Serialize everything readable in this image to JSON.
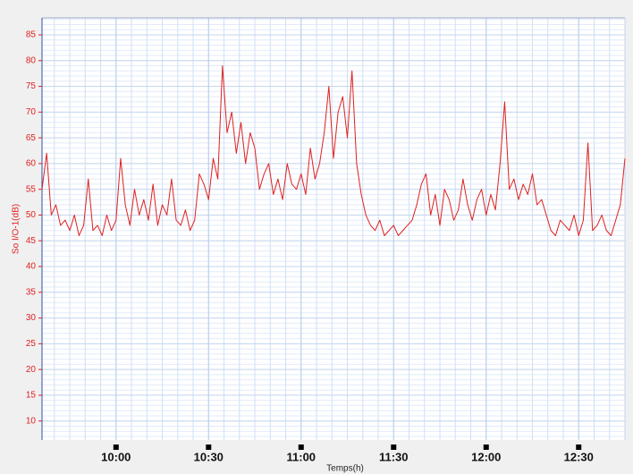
{
  "chart_data": {
    "type": "line",
    "x": [
      576,
      577.5,
      579,
      580.5,
      582,
      583.5,
      585,
      586.5,
      588,
      589.5,
      591,
      592.5,
      594,
      595.5,
      597,
      598.5,
      600,
      601.5,
      603,
      604.5,
      606,
      607.5,
      609,
      610.5,
      612,
      613.5,
      615,
      616.5,
      618,
      619.5,
      621,
      622.5,
      624,
      625.5,
      627,
      628.5,
      630,
      631.5,
      633,
      634.5,
      636,
      637.5,
      639,
      640.5,
      642,
      643.5,
      645,
      646.5,
      648,
      649.5,
      651,
      652.5,
      654,
      655.5,
      657,
      658.5,
      660,
      661.5,
      663,
      664.5,
      666,
      667.5,
      669,
      670.5,
      672,
      673.5,
      675,
      676.5,
      678,
      679.5,
      681,
      682.5,
      684,
      685.5,
      687,
      688.5,
      690,
      691.5,
      693,
      694.5,
      696,
      697.5,
      699,
      700.5,
      702,
      703.5,
      705,
      706.5,
      708,
      709.5,
      711,
      712.5,
      714,
      715.5,
      717,
      718.5,
      720,
      721.5,
      723,
      724.5,
      726,
      727.5,
      729,
      730.5,
      732,
      733.5,
      735,
      736.5,
      738,
      739.5,
      741,
      742.5,
      744,
      745.5,
      747,
      748.5,
      750,
      751.5,
      753,
      754.5,
      756,
      757.5,
      759,
      760.5,
      762,
      763.5,
      765
    ],
    "series": [
      {
        "color": "#e02020",
        "values": [
          55,
          62,
          50,
          52,
          48,
          49,
          47,
          50,
          46,
          48,
          57,
          47,
          48,
          46,
          50,
          47,
          49,
          61,
          52,
          48,
          55,
          50,
          53,
          49,
          56,
          48,
          52,
          50,
          57,
          49,
          48,
          51,
          47,
          49,
          58,
          56,
          53,
          61,
          57,
          79,
          66,
          70,
          62,
          68,
          60,
          66,
          63,
          55,
          58,
          60,
          54,
          57,
          53,
          60,
          56,
          55,
          58,
          54,
          63,
          57,
          60,
          66,
          75,
          61,
          70,
          73,
          65,
          78,
          60,
          54,
          50,
          48,
          47,
          49,
          46,
          47,
          48,
          46,
          47,
          48,
          49,
          52,
          56,
          58,
          50,
          54,
          48,
          55,
          53,
          49,
          51,
          57,
          52,
          49,
          53,
          55,
          50,
          54,
          51,
          60,
          72,
          55,
          57,
          53,
          56,
          54,
          58,
          52,
          53,
          50,
          47,
          46,
          49,
          48,
          47,
          50,
          46,
          49,
          64,
          47,
          48,
          50,
          47,
          46,
          49,
          52,
          61
        ]
      }
    ],
    "xlim": [
      576,
      765
    ],
    "xticks": [
      {
        "value": 600,
        "label": "10:00"
      },
      {
        "value": 630,
        "label": "10:30"
      },
      {
        "value": 660,
        "label": "11:00"
      },
      {
        "value": 690,
        "label": "11:30"
      },
      {
        "value": 720,
        "label": "12:00"
      },
      {
        "value": 750,
        "label": "12:30"
      }
    ],
    "ylim": [
      6.3,
      88.3
    ],
    "yticks": [
      10,
      15,
      20,
      25,
      30,
      35,
      40,
      45,
      50,
      55,
      60,
      65,
      70,
      75,
      80,
      85
    ],
    "ylabel": "So I/O-1(dB)",
    "xlabel": "Temps(h)",
    "grid": true
  }
}
